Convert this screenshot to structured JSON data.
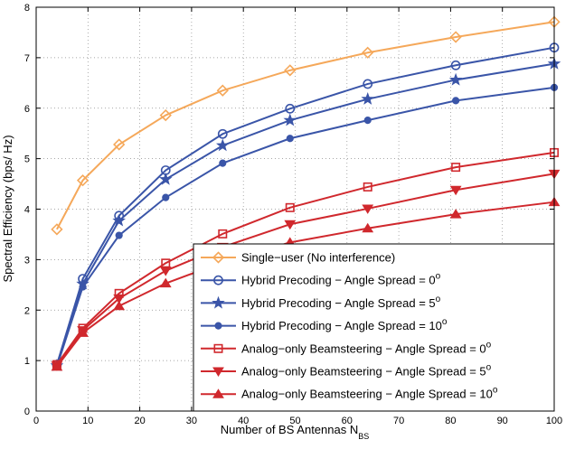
{
  "chart_data": {
    "type": "line",
    "xlabel": "Number of BS Antennas N",
    "xlabel_sub": "BS",
    "ylabel": "Spectral Efficiency (bps/ Hz)",
    "xlim": [
      0,
      100
    ],
    "ylim": [
      0,
      8
    ],
    "xticks": [
      "0",
      "10",
      "20",
      "30",
      "40",
      "50",
      "60",
      "70",
      "80",
      "90",
      "100"
    ],
    "yticks": [
      "0",
      "1",
      "2",
      "3",
      "4",
      "5",
      "6",
      "7",
      "8"
    ],
    "grid": true,
    "legend_position": "bottom-right",
    "x": [
      4,
      9,
      16,
      25,
      36,
      49,
      64,
      81,
      100
    ],
    "series": [
      {
        "name": "Single−user (No interference)",
        "color": "#f5a85a",
        "marker": "diamond",
        "values": [
          3.6,
          4.57,
          5.28,
          5.86,
          6.35,
          6.75,
          7.1,
          7.41,
          7.71
        ]
      },
      {
        "name": "Hybrid Precoding − Angle Spread = 0",
        "sup": "o",
        "color": "#3a55a8",
        "marker": "circle",
        "values": [
          0.92,
          2.62,
          3.87,
          4.77,
          5.49,
          5.99,
          6.48,
          6.85,
          7.2
        ]
      },
      {
        "name": "Hybrid Precoding − Angle Spread = 5",
        "sup": "o",
        "color": "#3a55a8",
        "marker": "star",
        "values": [
          0.9,
          2.52,
          3.77,
          4.59,
          5.26,
          5.76,
          6.18,
          6.56,
          6.88
        ]
      },
      {
        "name": "Hybrid Precoding − Angle Spread = 10",
        "sup": "o",
        "color": "#3a55a8",
        "marker": "dot",
        "values": [
          0.88,
          2.46,
          3.48,
          4.23,
          4.91,
          5.4,
          5.76,
          6.15,
          6.41
        ]
      },
      {
        "name": "Analog−only Beamsteering − Angle Spread = 0",
        "sup": "o",
        "color": "#d0282d",
        "marker": "square",
        "values": [
          0.92,
          1.64,
          2.33,
          2.93,
          3.51,
          4.03,
          4.44,
          4.83,
          5.12
        ]
      },
      {
        "name": "Analog−only Beamsteering − Angle Spread = 5",
        "sup": "o",
        "color": "#d0282d",
        "marker": "triangle-down",
        "values": [
          0.9,
          1.6,
          2.23,
          2.78,
          3.25,
          3.7,
          4.01,
          4.38,
          4.7
        ]
      },
      {
        "name": "Analog−only Beamsteering − Angle Spread = 10",
        "sup": "o",
        "color": "#d0282d",
        "marker": "triangle-up",
        "values": [
          0.88,
          1.55,
          2.08,
          2.53,
          2.95,
          3.34,
          3.62,
          3.9,
          4.14
        ]
      }
    ]
  }
}
